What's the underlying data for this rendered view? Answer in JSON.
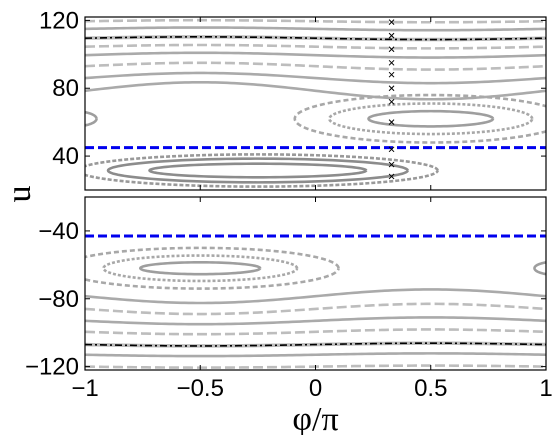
{
  "chart_data": {
    "type": "line",
    "xlabel": "φ/π",
    "ylabel": "u",
    "xlim": [
      -1,
      1
    ],
    "xticks": [
      "−1",
      "−0.5",
      "0",
      "0.5",
      "1"
    ],
    "panels": [
      {
        "ylim": [
          20,
          122
        ],
        "yticks": [
          {
            "value": 120,
            "label": "120"
          },
          {
            "value": 80,
            "label": "80"
          },
          {
            "value": 40,
            "label": "40"
          }
        ],
        "dashed_level": {
          "y": 45,
          "color": "#0000ee"
        },
        "separatrix": {
          "center": 109.5,
          "amp": 0.8,
          "color": "#000000"
        },
        "marker_column": {
          "x": 0.33,
          "y": [
            119,
            111,
            103,
            95,
            88,
            80,
            72,
            60,
            44,
            35,
            28
          ]
        },
        "curves": [
          {
            "kind": "open",
            "center": 119.5,
            "amp": 0.6,
            "color": "#bdbdbd",
            "dash": "10 4"
          },
          {
            "kind": "open",
            "center": 115,
            "amp": 0.8,
            "color": "#aaaaaa"
          },
          {
            "kind": "open",
            "center": 104.5,
            "amp": 1,
            "color": "#bdbdbd",
            "dash": "10 4"
          },
          {
            "kind": "open",
            "center": 99.5,
            "amp": 1.4,
            "color": "#aaaaaa"
          },
          {
            "kind": "open",
            "center": 93,
            "amp": 2,
            "color": "#bdbdbd",
            "dash": "10 4"
          },
          {
            "kind": "open",
            "center": 86,
            "amp": 3,
            "color": "#aaaaaa"
          },
          {
            "kind": "open",
            "center": 78.5,
            "amp": 5,
            "color": "#aaaaaa"
          },
          {
            "kind": "loop",
            "cx": 0.5,
            "cy": 62,
            "rx": 0.27,
            "ry": 4.5,
            "color": "#9e9e9e"
          },
          {
            "kind": "loop",
            "cx": 0.5,
            "cy": 62,
            "rx": 0.44,
            "ry": 9,
            "color": "#a8a8a8",
            "dash": "3 2"
          },
          {
            "kind": "loop",
            "cx": 0.5,
            "cy": 62,
            "rx": 0.59,
            "ry": 14,
            "color": "#a8a8a8",
            "dash": "5 3"
          },
          {
            "kind": "loop",
            "cx": -1.05,
            "cy": 62,
            "rx": 0.1,
            "ry": 4.5,
            "color": "#9e9e9e"
          },
          {
            "kind": "loop",
            "cx": -0.25,
            "cy": 31.5,
            "rx": 0.47,
            "ry": 4,
            "color": "#8c8c8c"
          },
          {
            "kind": "loop",
            "cx": -0.25,
            "cy": 31.5,
            "rx": 0.65,
            "ry": 7,
            "color": "#8c8c8c"
          },
          {
            "kind": "loop",
            "cx": -0.25,
            "cy": 31.5,
            "rx": 0.78,
            "ry": 9.5,
            "color": "#999999",
            "dash": "4 2"
          }
        ]
      },
      {
        "ylim": [
          -122,
          -20
        ],
        "yticks": [
          {
            "value": -40,
            "label": "−40"
          },
          {
            "value": -80,
            "label": "−80"
          },
          {
            "value": -120,
            "label": "−120"
          }
        ],
        "dashed_level": {
          "y": -43,
          "color": "#0000ee"
        },
        "separatrix": {
          "center": -107,
          "amp": 0.8,
          "color": "#000000"
        },
        "marker_column": null,
        "curves": [
          {
            "kind": "loop",
            "cx": -0.5,
            "cy": -62,
            "rx": 0.26,
            "ry": 3.5,
            "color": "#9e9e9e"
          },
          {
            "kind": "loop",
            "cx": -0.5,
            "cy": -62,
            "rx": 0.42,
            "ry": 7.5,
            "color": "#a8a8a8",
            "dash": "3 2"
          },
          {
            "kind": "loop",
            "cx": -0.5,
            "cy": -62,
            "rx": 0.6,
            "ry": 12,
            "color": "#a8a8a8",
            "dash": "5 3"
          },
          {
            "kind": "loop",
            "cx": 1.05,
            "cy": -62,
            "rx": 0.1,
            "ry": 4,
            "color": "#9e9e9e"
          },
          {
            "kind": "open",
            "center": -78.5,
            "amp": 4,
            "color": "#aaaaaa"
          },
          {
            "kind": "open",
            "center": -86,
            "amp": 3,
            "color": "#bdbdbd",
            "dash": "10 4"
          },
          {
            "kind": "open",
            "center": -93,
            "amp": 2,
            "color": "#aaaaaa"
          },
          {
            "kind": "open",
            "center": -99.5,
            "amp": 1.4,
            "color": "#bdbdbd",
            "dash": "10 4"
          },
          {
            "kind": "open",
            "center": -113,
            "amp": 0.8,
            "color": "#aaaaaa"
          },
          {
            "kind": "open",
            "center": -120,
            "amp": 0.6,
            "color": "#bdbdbd",
            "dash": "10 4"
          }
        ]
      }
    ]
  }
}
